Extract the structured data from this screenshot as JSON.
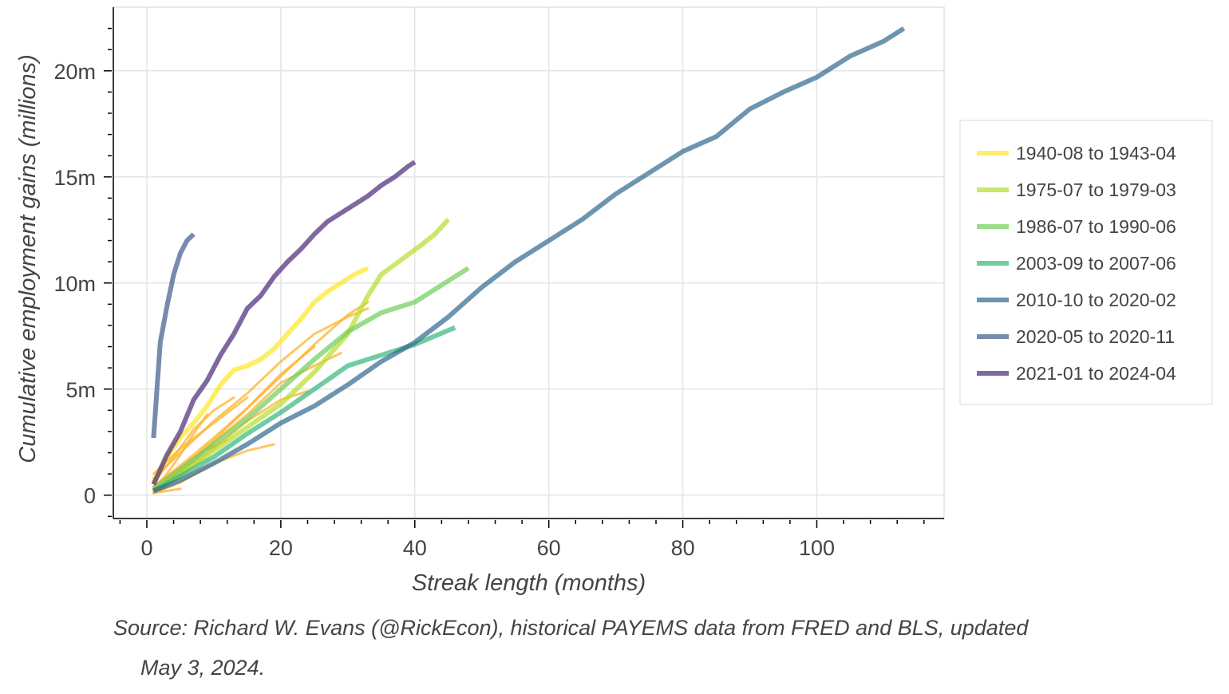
{
  "chart_data": {
    "type": "line",
    "title": "",
    "xlabel": "Streak length (months)",
    "ylabel": "Cumulative employment gains (millions)",
    "xlim": [
      -5,
      119
    ],
    "ylim": [
      -1.1,
      23
    ],
    "xticks": [
      0,
      20,
      40,
      60,
      80,
      100
    ],
    "xtick_labels": [
      "0",
      "20",
      "40",
      "60",
      "80",
      "100"
    ],
    "yticks": [
      0,
      5,
      10,
      15,
      20
    ],
    "ytick_labels": [
      "0",
      "5m",
      "10m",
      "15m",
      "20m"
    ],
    "grid": true,
    "legend_position": "right",
    "series": [
      {
        "name": "1940-08 to 1943-04",
        "color": "#fde725",
        "x": [
          1,
          3,
          5,
          7,
          9,
          11,
          13,
          15,
          17,
          19,
          21,
          23,
          25,
          27,
          29,
          31,
          33
        ],
        "values": [
          0.6,
          1.8,
          2.7,
          3.4,
          4.2,
          5.2,
          5.9,
          6.1,
          6.4,
          6.9,
          7.6,
          8.3,
          9.1,
          9.6,
          10.0,
          10.4,
          10.7
        ]
      },
      {
        "name": "1975-07 to 1979-03",
        "color": "#b5de2b",
        "x": [
          1,
          5,
          10,
          15,
          20,
          25,
          30,
          33,
          35,
          38,
          41,
          43,
          45
        ],
        "values": [
          0.2,
          1.0,
          2.1,
          3.2,
          4.3,
          5.8,
          7.6,
          9.4,
          10.4,
          11.1,
          11.8,
          12.3,
          13.0
        ]
      },
      {
        "name": "1986-07 to 1990-06",
        "color": "#6ece58",
        "x": [
          1,
          5,
          10,
          15,
          20,
          25,
          30,
          35,
          40,
          44,
          48
        ],
        "values": [
          0.3,
          1.2,
          2.4,
          3.6,
          5.0,
          6.4,
          7.7,
          8.6,
          9.1,
          9.9,
          10.7
        ]
      },
      {
        "name": "2003-09 to 2007-06",
        "color": "#35b779",
        "x": [
          1,
          5,
          10,
          15,
          20,
          25,
          30,
          35,
          40,
          46
        ],
        "values": [
          0.2,
          0.9,
          1.8,
          2.9,
          3.9,
          5.0,
          6.1,
          6.6,
          7.1,
          7.9
        ]
      },
      {
        "name": "2010-10 to 2020-02",
        "color": "#31688e",
        "x": [
          1,
          5,
          10,
          15,
          20,
          25,
          30,
          35,
          40,
          45,
          50,
          55,
          60,
          65,
          70,
          75,
          80,
          85,
          90,
          95,
          100,
          105,
          110,
          113
        ],
        "values": [
          0.2,
          0.7,
          1.5,
          2.4,
          3.4,
          4.2,
          5.2,
          6.3,
          7.2,
          8.4,
          9.8,
          11.0,
          12.0,
          13.0,
          14.2,
          15.2,
          16.2,
          16.9,
          18.2,
          19.0,
          19.7,
          20.7,
          21.4,
          22.0
        ]
      },
      {
        "name": "2020-05 to 2020-11",
        "color": "#3e5a8c",
        "x": [
          1,
          2,
          3,
          4,
          5,
          6,
          7
        ],
        "values": [
          2.7,
          7.2,
          8.9,
          10.4,
          11.4,
          12.0,
          12.3
        ]
      },
      {
        "name": "2021-01 to 2024-04",
        "color": "#482878",
        "x": [
          1,
          3,
          5,
          7,
          9,
          11,
          13,
          15,
          17,
          19,
          21,
          23,
          25,
          27,
          29,
          31,
          33,
          35,
          37,
          39,
          40
        ],
        "values": [
          0.5,
          1.9,
          3.0,
          4.5,
          5.4,
          6.6,
          7.6,
          8.8,
          9.4,
          10.3,
          11.0,
          11.6,
          12.3,
          12.9,
          13.3,
          13.7,
          14.1,
          14.6,
          15.0,
          15.5,
          15.7
        ]
      }
    ],
    "other_streaks": {
      "color": "#fdb42f",
      "lines": [
        {
          "x": [
            1,
            5,
            10,
            15,
            20,
            25,
            30,
            33
          ],
          "values": [
            0.3,
            1.2,
            2.6,
            4.1,
            5.6,
            7.1,
            8.5,
            9.1
          ]
        },
        {
          "x": [
            1,
            5,
            10,
            15,
            20,
            25,
            30,
            33
          ],
          "values": [
            0.8,
            2.0,
            3.5,
            4.8,
            6.3,
            7.6,
            8.4,
            8.8
          ]
        },
        {
          "x": [
            1,
            5,
            10,
            15,
            20,
            25,
            29
          ],
          "values": [
            0.2,
            1.0,
            2.5,
            3.8,
            5.3,
            6.1,
            6.7
          ]
        },
        {
          "x": [
            1,
            5,
            10,
            15,
            20,
            24
          ],
          "values": [
            0.2,
            0.9,
            2.2,
            3.5,
            4.5,
            4.9
          ]
        },
        {
          "x": [
            1,
            5,
            10,
            15,
            20,
            25
          ],
          "values": [
            0.4,
            1.4,
            2.7,
            4.1,
            5.7,
            7.0
          ]
        },
        {
          "x": [
            1,
            5,
            10,
            15,
            19
          ],
          "values": [
            0.1,
            0.6,
            1.5,
            2.1,
            2.4
          ]
        },
        {
          "x": [
            1,
            4,
            7,
            10,
            13
          ],
          "values": [
            0.6,
            1.8,
            3.1,
            4.0,
            4.6
          ]
        },
        {
          "x": [
            1,
            3,
            5,
            7,
            9
          ],
          "values": [
            0.3,
            1.0,
            1.9,
            2.9,
            3.8
          ]
        },
        {
          "x": [
            1,
            3,
            5
          ],
          "values": [
            0.1,
            0.2,
            0.3
          ]
        },
        {
          "x": [
            1,
            5,
            10,
            15
          ],
          "values": [
            1.0,
            2.2,
            3.4,
            4.6
          ]
        },
        {
          "x": [
            1,
            4,
            8,
            12
          ],
          "values": [
            0.4,
            1.1,
            2.0,
            2.6
          ]
        }
      ]
    }
  },
  "caption": {
    "line1": "Source: Richard W. Evans (@RickEcon), historical PAYEMS data from FRED and BLS, updated",
    "line2": "May 3, 2024."
  }
}
